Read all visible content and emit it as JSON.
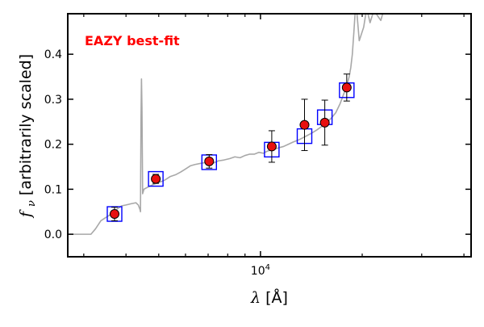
{
  "chart_data": {
    "type": "scatter",
    "title": "",
    "annotation": "EAZY best-fit",
    "xlabel": "λ [Å]",
    "ylabel": "f_ν [arbitrarily scaled]",
    "xscale": "log",
    "xlim": [
      2690,
      42000
    ],
    "ylim": [
      -0.05,
      0.49
    ],
    "x_major_ticks": [
      10000
    ],
    "x_major_tick_labels": [
      "10^4"
    ],
    "x_minor_ticks": [
      3000,
      4000,
      5000,
      6000,
      7000,
      8000,
      9000,
      20000,
      30000,
      40000
    ],
    "y_ticks": [
      0.0,
      0.1,
      0.2,
      0.3,
      0.4
    ],
    "y_tick_labels": [
      "0.0",
      "0.1",
      "0.2",
      "0.3",
      "0.4"
    ],
    "grid": false,
    "series": [
      {
        "name": "EAZY best-fit template",
        "style": "line",
        "color": "#a8a8a8",
        "points": [
          [
            2690,
            0.0
          ],
          [
            3150,
            0.0
          ],
          [
            3250,
            0.012
          ],
          [
            3370,
            0.03
          ],
          [
            3500,
            0.038
          ],
          [
            3620,
            0.045
          ],
          [
            3750,
            0.055
          ],
          [
            3880,
            0.063
          ],
          [
            4000,
            0.065
          ],
          [
            4150,
            0.068
          ],
          [
            4280,
            0.07
          ],
          [
            4350,
            0.065
          ],
          [
            4400,
            0.055
          ],
          [
            4415,
            0.05
          ],
          [
            4430,
            0.25
          ],
          [
            4445,
            0.345
          ],
          [
            4460,
            0.28
          ],
          [
            4480,
            0.09
          ],
          [
            4520,
            0.1
          ],
          [
            4650,
            0.105
          ],
          [
            4800,
            0.11
          ],
          [
            5000,
            0.115
          ],
          [
            5200,
            0.12
          ],
          [
            5400,
            0.128
          ],
          [
            5600,
            0.132
          ],
          [
            5800,
            0.138
          ],
          [
            6000,
            0.145
          ],
          [
            6200,
            0.152
          ],
          [
            6400,
            0.155
          ],
          [
            6700,
            0.158
          ],
          [
            7000,
            0.16
          ],
          [
            7200,
            0.157
          ],
          [
            7500,
            0.163
          ],
          [
            7800,
            0.165
          ],
          [
            8100,
            0.168
          ],
          [
            8400,
            0.172
          ],
          [
            8700,
            0.17
          ],
          [
            9000,
            0.175
          ],
          [
            9300,
            0.178
          ],
          [
            9600,
            0.178
          ],
          [
            9900,
            0.182
          ],
          [
            10200,
            0.18
          ],
          [
            10500,
            0.185
          ],
          [
            10900,
            0.188
          ],
          [
            11300,
            0.192
          ],
          [
            11700,
            0.195
          ],
          [
            12100,
            0.2
          ],
          [
            12500,
            0.205
          ],
          [
            13000,
            0.21
          ],
          [
            13400,
            0.215
          ],
          [
            13800,
            0.22
          ],
          [
            14200,
            0.225
          ],
          [
            14700,
            0.232
          ],
          [
            15200,
            0.24
          ],
          [
            15700,
            0.248
          ],
          [
            16200,
            0.258
          ],
          [
            16700,
            0.27
          ],
          [
            17200,
            0.29
          ],
          [
            17600,
            0.31
          ],
          [
            18000,
            0.33
          ],
          [
            18300,
            0.35
          ],
          [
            18500,
            0.37
          ],
          [
            18700,
            0.4
          ],
          [
            18900,
            0.45
          ],
          [
            19050,
            0.49
          ],
          [
            19300,
            0.49
          ],
          [
            19450,
            0.46
          ],
          [
            19600,
            0.43
          ],
          [
            19800,
            0.44
          ],
          [
            20000,
            0.45
          ],
          [
            20200,
            0.46
          ],
          [
            20500,
            0.49
          ],
          [
            20800,
            0.49
          ],
          [
            21100,
            0.47
          ],
          [
            21500,
            0.49
          ],
          [
            22000,
            0.49
          ],
          [
            22700,
            0.475
          ],
          [
            23000,
            0.49
          ]
        ]
      },
      {
        "name": "Model photometry",
        "style": "open-square",
        "color": "#0000ff",
        "points": [
          [
            3700,
            0.045
          ],
          [
            4900,
            0.123
          ],
          [
            7050,
            0.16
          ],
          [
            10800,
            0.188
          ],
          [
            13500,
            0.218
          ],
          [
            15500,
            0.26
          ],
          [
            18000,
            0.32
          ]
        ]
      },
      {
        "name": "Observed photometry",
        "style": "circle-errorbar",
        "color": "#e81010",
        "points": [
          [
            3700,
            0.045,
            0.015
          ],
          [
            4900,
            0.123,
            0.01
          ],
          [
            7050,
            0.162,
            0.015
          ],
          [
            10800,
            0.195,
            0.035
          ],
          [
            13500,
            0.243,
            0.057
          ],
          [
            15500,
            0.248,
            0.05
          ],
          [
            18000,
            0.326,
            0.03
          ]
        ]
      }
    ]
  }
}
